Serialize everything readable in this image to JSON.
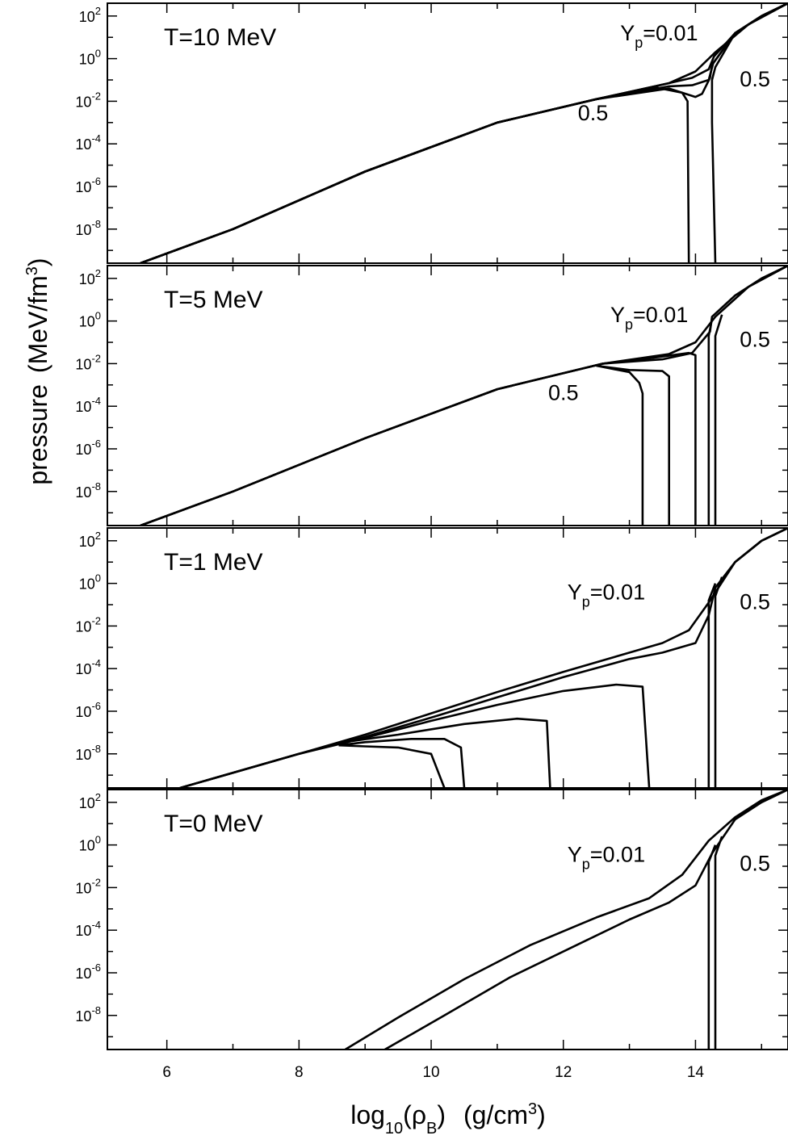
{
  "figure": {
    "ylabel": "pressure",
    "ylabel_units": "(MeV/fm",
    "ylabel_units_sup": "3",
    "ylabel_units_close": ")",
    "xlabel_main": "log",
    "xlabel_sub": "10",
    "xlabel_open": "(",
    "xlabel_rho": "ρ",
    "xlabel_rho_sub": "B",
    "xlabel_close": ")",
    "xlabel_units": "(g/cm",
    "xlabel_units_sup": "3",
    "xlabel_units_close": ")"
  },
  "chart_data": [
    {
      "type": "line",
      "title": "T=10 MeV",
      "xlim": [
        5.1,
        15.4
      ],
      "ylim": [
        -9.6,
        2.6
      ],
      "y_scale": "log",
      "x_ticks": [
        6,
        8,
        10,
        12,
        14
      ],
      "y_ticks": [
        2,
        0,
        -2,
        -4,
        -6,
        -8
      ],
      "annotations": [
        {
          "text": "Y",
          "sub": "p",
          "rest": "=0.01",
          "x": 13.45,
          "y": 0.85
        },
        {
          "text": "0.5",
          "x": 12.45,
          "y": -2.9
        },
        {
          "text": "0.5",
          "x": 14.9,
          "y": -1.3
        }
      ],
      "series": [
        {
          "x": [
            5.6,
            7,
            9,
            11,
            12.5,
            13.6,
            14.0,
            14.3,
            14.8,
            15.4
          ],
          "y": [
            -9.6,
            -8.0,
            -5.3,
            -3.0,
            -1.9,
            -1.15,
            -0.6,
            0.3,
            1.6,
            2.6
          ]
        },
        {
          "x": [
            5.6,
            7,
            9,
            11,
            12.5,
            13.6,
            13.95,
            14.2,
            14.28,
            14.6,
            15.0,
            15.4
          ],
          "y": [
            -9.6,
            -8.0,
            -5.3,
            -3.0,
            -1.9,
            -1.15,
            -0.9,
            -0.5,
            0.1,
            1.2,
            2.0,
            2.6
          ]
        },
        {
          "x": [
            5.6,
            7,
            9,
            11,
            12.5,
            13.6,
            13.95,
            14.2,
            14.27,
            14.6,
            15.0,
            15.4
          ],
          "y": [
            -9.6,
            -8.0,
            -5.3,
            -3.0,
            -1.9,
            -1.3,
            -1.25,
            -1.0,
            -0.2,
            1.2,
            2.0,
            2.6
          ]
        },
        {
          "x": [
            5.6,
            7,
            9,
            11,
            12.5,
            13.6,
            14.0,
            14.1,
            14.22,
            14.25,
            14.6,
            15.0,
            15.4
          ],
          "y": [
            -9.6,
            -8.0,
            -5.3,
            -3.0,
            -1.9,
            -1.4,
            -1.8,
            -1.65,
            -0.9,
            -0.3,
            1.2,
            2.0,
            2.6
          ]
        },
        {
          "x": [
            5.6,
            7,
            9,
            11,
            12.5,
            13.4,
            13.8,
            13.88,
            13.9
          ],
          "y": [
            -9.6,
            -8.0,
            -5.3,
            -3.0,
            -1.9,
            -1.35,
            -1.6,
            -2.0,
            -9.6
          ]
        },
        {
          "x": [
            14.3,
            14.25,
            14.25,
            14.3,
            14.6,
            15.0,
            15.4
          ],
          "y": [
            -9.6,
            -3.0,
            -1.0,
            -0.4,
            1.2,
            2.0,
            2.6
          ]
        }
      ]
    },
    {
      "type": "line",
      "title": "T=5 MeV",
      "xlim": [
        5.1,
        15.4
      ],
      "ylim": [
        -9.6,
        2.6
      ],
      "y_scale": "log",
      "x_ticks": [
        6,
        8,
        10,
        12,
        14
      ],
      "y_ticks": [
        2,
        0,
        -2,
        -4,
        -6,
        -8
      ],
      "annotations": [
        {
          "text": "Y",
          "sub": "p",
          "rest": "=0.01",
          "x": 13.3,
          "y": -0.05
        },
        {
          "text": "0.5",
          "x": 12.0,
          "y": -3.7
        },
        {
          "text": "0.5",
          "x": 14.9,
          "y": -1.2
        }
      ],
      "series": [
        {
          "x": [
            5.6,
            7,
            9,
            11,
            12.6,
            13.6,
            14.0,
            14.3,
            14.8,
            15.4
          ],
          "y": [
            -9.6,
            -8.0,
            -5.5,
            -3.2,
            -2.0,
            -1.55,
            -1.0,
            0.2,
            1.6,
            2.6
          ]
        },
        {
          "x": [
            5.6,
            7,
            9,
            11,
            12.6,
            13.5,
            13.95,
            14.22,
            14.25,
            14.6,
            15.0,
            15.4
          ],
          "y": [
            -9.6,
            -8.0,
            -5.5,
            -3.2,
            -2.0,
            -1.8,
            -1.5,
            -0.5,
            0.2,
            1.2,
            2.0,
            2.6
          ]
        },
        {
          "x": [
            14.2,
            14.2,
            14.25
          ],
          "y": [
            -9.6,
            -0.7,
            0.1
          ]
        },
        {
          "x": [
            14.3,
            14.3,
            14.4
          ],
          "y": [
            -9.6,
            -0.7,
            0.3
          ]
        },
        {
          "x": [
            5.6,
            7,
            9,
            11,
            12.6,
            13.3,
            13.9,
            14.0,
            14.0
          ],
          "y": [
            -9.6,
            -8.0,
            -5.5,
            -3.2,
            -2.0,
            -1.75,
            -1.5,
            -1.6,
            -9.6
          ]
        },
        {
          "x": [
            12.5,
            13.0,
            13.5,
            13.6,
            13.6
          ],
          "y": [
            -2.1,
            -2.3,
            -2.35,
            -2.6,
            -9.6
          ]
        },
        {
          "x": [
            12.5,
            13.0,
            13.15,
            13.2,
            13.2
          ],
          "y": [
            -2.1,
            -2.4,
            -2.9,
            -3.4,
            -9.6
          ]
        }
      ]
    },
    {
      "type": "line",
      "title": "T=1 MeV",
      "xlim": [
        5.1,
        15.4
      ],
      "ylim": [
        -9.6,
        2.6
      ],
      "y_scale": "log",
      "x_ticks": [
        6,
        8,
        10,
        12,
        14
      ],
      "y_ticks": [
        2,
        0,
        -2,
        -4,
        -6,
        -8
      ],
      "annotations": [
        {
          "text": "Y",
          "sub": "p",
          "rest": "=0.01",
          "x": 12.65,
          "y": -0.75
        },
        {
          "text": "0.5",
          "x": 14.9,
          "y": -1.2
        }
      ],
      "series": [
        {
          "x": [
            6.2,
            8,
            9,
            10,
            11,
            12,
            13,
            13.5,
            13.9,
            14.2,
            14.6,
            15.0,
            15.4
          ],
          "y": [
            -9.6,
            -8.0,
            -7.1,
            -6.1,
            -5.1,
            -4.15,
            -3.25,
            -2.8,
            -2.2,
            -0.9,
            1.0,
            2.0,
            2.6
          ]
        },
        {
          "x": [
            6.2,
            8,
            9,
            10,
            11,
            12,
            13,
            13.5,
            14.0,
            14.2,
            14.3,
            14.6,
            15.0,
            15.4
          ],
          "y": [
            -9.6,
            -8.0,
            -7.2,
            -6.3,
            -5.35,
            -4.4,
            -3.55,
            -3.25,
            -2.8,
            -1.5,
            -0.2,
            1.0,
            2.0,
            2.6
          ]
        },
        {
          "x": [
            14.2,
            14.2,
            14.3
          ],
          "y": [
            -9.6,
            -0.8,
            0.0
          ]
        },
        {
          "x": [
            14.3,
            14.3,
            14.4
          ],
          "y": [
            -9.6,
            -0.6,
            0.3
          ]
        },
        {
          "x": [
            6.2,
            8,
            9,
            10,
            11,
            12,
            12.8,
            13.2,
            13.3
          ],
          "y": [
            -9.6,
            -8.0,
            -7.25,
            -6.45,
            -5.7,
            -5.05,
            -4.75,
            -4.85,
            -9.6
          ]
        },
        {
          "x": [
            8.8,
            9.5,
            10.5,
            11.3,
            11.75,
            11.8
          ],
          "y": [
            -7.4,
            -7.1,
            -6.6,
            -6.35,
            -6.45,
            -9.6
          ]
        },
        {
          "x": [
            8.6,
            9.0,
            9.7,
            10.2,
            10.45,
            10.5
          ],
          "y": [
            -7.6,
            -7.45,
            -7.3,
            -7.3,
            -7.7,
            -9.6
          ]
        },
        {
          "x": [
            8.6,
            9.0,
            9.5,
            10.0,
            10.2
          ],
          "y": [
            -7.6,
            -7.65,
            -7.7,
            -8.0,
            -9.6
          ]
        }
      ]
    },
    {
      "type": "line",
      "title": "T=0 MeV",
      "xlim": [
        5.1,
        15.4
      ],
      "ylim": [
        -9.6,
        2.6
      ],
      "y_scale": "log",
      "x_ticks": [
        6,
        8,
        10,
        12,
        14
      ],
      "y_ticks": [
        2,
        0,
        -2,
        -4,
        -6,
        -8
      ],
      "annotations": [
        {
          "text": "Y",
          "sub": "p",
          "rest": "=0.01",
          "x": 12.65,
          "y": -0.8
        },
        {
          "text": "0.5",
          "x": 14.9,
          "y": -1.2
        }
      ],
      "series": [
        {
          "x": [
            8.7,
            9.5,
            10.5,
            11.5,
            12.5,
            13.3,
            13.8,
            14.2,
            14.6,
            15.0,
            15.4
          ],
          "y": [
            -9.6,
            -8.1,
            -6.3,
            -4.7,
            -3.4,
            -2.5,
            -1.4,
            0.2,
            1.3,
            2.1,
            2.6
          ]
        },
        {
          "x": [
            9.3,
            10.2,
            11.2,
            12.2,
            13.0,
            13.6,
            14.0,
            14.25,
            14.6,
            15.0,
            15.4
          ],
          "y": [
            -9.6,
            -8.0,
            -6.2,
            -4.7,
            -3.5,
            -2.7,
            -1.9,
            -0.4,
            1.2,
            2.0,
            2.6
          ]
        },
        {
          "x": [
            14.2,
            14.2,
            14.3
          ],
          "y": [
            -9.6,
            -0.8,
            0.0
          ]
        },
        {
          "x": [
            14.3,
            14.3,
            14.4
          ],
          "y": [
            -9.6,
            -0.5,
            0.4
          ]
        }
      ]
    }
  ]
}
